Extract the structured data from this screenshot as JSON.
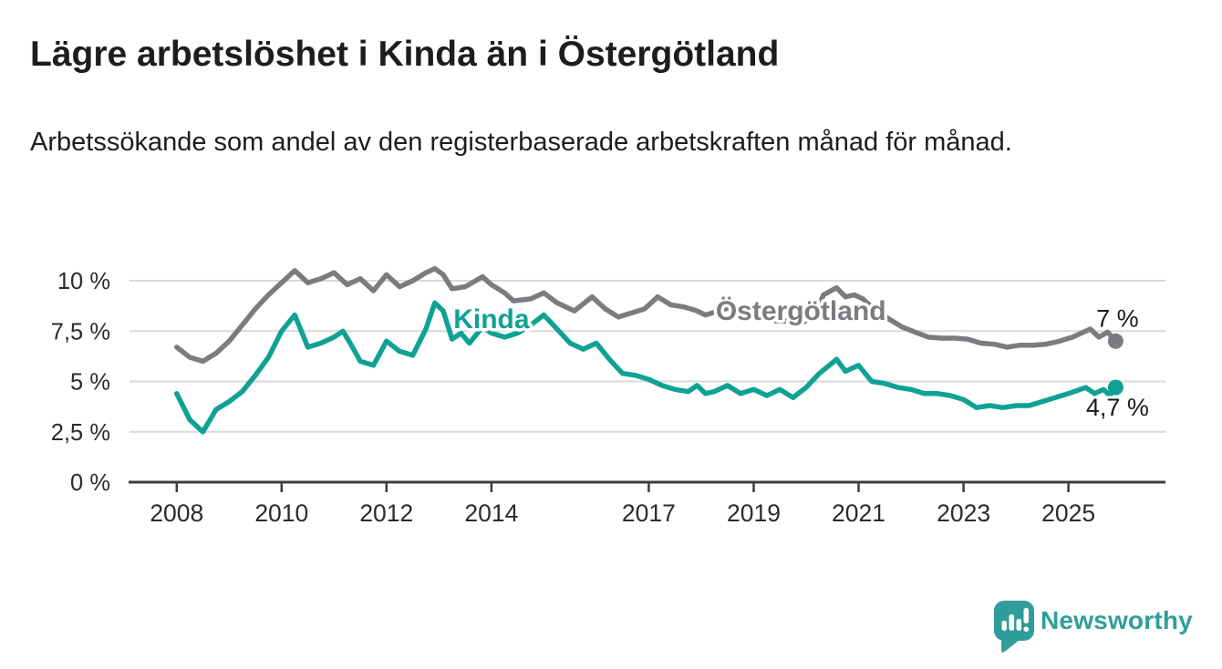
{
  "header": {
    "title": "Lägre arbetslöshet i Kinda än i Östergötland",
    "subtitle": "Arbetssökande som andel av den registerbaserade arbetskraften månad för månad."
  },
  "footer": {
    "brand": "Newsworthy",
    "brand_color": "#2f9e9b",
    "logo_icon": "speech-bubble-with-bar-chart-and-exclamation"
  },
  "chart_data": {
    "type": "line",
    "title": "Lägre arbetslöshet i Kinda än i Östergötland",
    "subtitle": "Arbetssökande som andel av den registerbaserade arbetskraften månad för månad.",
    "unit": "%",
    "grid": true,
    "x_axis": {
      "range": [
        2007.1,
        2026.85
      ],
      "ticks": [
        {
          "value": 2008,
          "label": "2008"
        },
        {
          "value": 2010,
          "label": "2010"
        },
        {
          "value": 2012,
          "label": "2012"
        },
        {
          "value": 2014,
          "label": "2014"
        },
        {
          "value": 2017,
          "label": "2017"
        },
        {
          "value": 2019,
          "label": "2019"
        },
        {
          "value": 2021,
          "label": "2021"
        },
        {
          "value": 2023,
          "label": "2023"
        },
        {
          "value": 2025,
          "label": "2025"
        }
      ]
    },
    "y_axis": {
      "range": [
        0,
        10.8
      ],
      "ticks": [
        {
          "value": 0,
          "label": "0 %"
        },
        {
          "value": 2.5,
          "label": "2,5 %"
        },
        {
          "value": 5,
          "label": "5 %"
        },
        {
          "value": 7.5,
          "label": "7,5 %"
        },
        {
          "value": 10,
          "label": "10 %"
        }
      ]
    },
    "colors": {
      "grid": "#d9d9d9",
      "axis": "#3d3d3d",
      "tick_label": "#2b2b2b",
      "end_label_text": "#1a1a1a"
    },
    "series": [
      {
        "id": "kinda",
        "name": "Kinda",
        "color": "#0fa294",
        "inline_label": {
          "x": 2014.0,
          "y": 7.65
        },
        "end_dot": {
          "x": 2025.9,
          "y": 4.7
        },
        "end_label": "4,7 %",
        "end_label_position": "below",
        "points": [
          [
            2008.0,
            4.4
          ],
          [
            2008.25,
            3.1
          ],
          [
            2008.5,
            2.5
          ],
          [
            2008.75,
            3.6
          ],
          [
            2009.0,
            4.0
          ],
          [
            2009.25,
            4.5
          ],
          [
            2009.5,
            5.3
          ],
          [
            2009.75,
            6.2
          ],
          [
            2010.0,
            7.5
          ],
          [
            2010.25,
            8.3
          ],
          [
            2010.5,
            6.7
          ],
          [
            2010.75,
            6.9
          ],
          [
            2011.0,
            7.2
          ],
          [
            2011.17,
            7.5
          ],
          [
            2011.33,
            6.8
          ],
          [
            2011.5,
            6.0
          ],
          [
            2011.75,
            5.8
          ],
          [
            2012.0,
            7.0
          ],
          [
            2012.25,
            6.5
          ],
          [
            2012.5,
            6.3
          ],
          [
            2012.75,
            7.6
          ],
          [
            2012.92,
            8.9
          ],
          [
            2013.08,
            8.5
          ],
          [
            2013.25,
            7.1
          ],
          [
            2013.42,
            7.4
          ],
          [
            2013.58,
            6.9
          ],
          [
            2013.83,
            7.7
          ],
          [
            2014.0,
            7.4
          ],
          [
            2014.25,
            7.2
          ],
          [
            2014.5,
            7.4
          ],
          [
            2014.75,
            7.8
          ],
          [
            2015.0,
            8.3
          ],
          [
            2015.25,
            7.6
          ],
          [
            2015.5,
            6.9
          ],
          [
            2015.75,
            6.6
          ],
          [
            2016.0,
            6.9
          ],
          [
            2016.25,
            6.1
          ],
          [
            2016.5,
            5.4
          ],
          [
            2016.75,
            5.3
          ],
          [
            2017.0,
            5.1
          ],
          [
            2017.25,
            4.8
          ],
          [
            2017.5,
            4.6
          ],
          [
            2017.75,
            4.5
          ],
          [
            2017.92,
            4.8
          ],
          [
            2018.08,
            4.4
          ],
          [
            2018.25,
            4.5
          ],
          [
            2018.5,
            4.8
          ],
          [
            2018.75,
            4.4
          ],
          [
            2019.0,
            4.6
          ],
          [
            2019.25,
            4.3
          ],
          [
            2019.5,
            4.6
          ],
          [
            2019.75,
            4.2
          ],
          [
            2020.0,
            4.7
          ],
          [
            2020.25,
            5.4
          ],
          [
            2020.58,
            6.1
          ],
          [
            2020.75,
            5.5
          ],
          [
            2021.0,
            5.8
          ],
          [
            2021.25,
            5.0
          ],
          [
            2021.5,
            4.9
          ],
          [
            2021.75,
            4.7
          ],
          [
            2022.0,
            4.6
          ],
          [
            2022.25,
            4.4
          ],
          [
            2022.5,
            4.4
          ],
          [
            2022.75,
            4.3
          ],
          [
            2023.0,
            4.1
          ],
          [
            2023.25,
            3.7
          ],
          [
            2023.5,
            3.8
          ],
          [
            2023.75,
            3.7
          ],
          [
            2024.0,
            3.8
          ],
          [
            2024.25,
            3.8
          ],
          [
            2024.5,
            4.0
          ],
          [
            2024.75,
            4.2
          ],
          [
            2025.0,
            4.4
          ],
          [
            2025.33,
            4.7
          ],
          [
            2025.5,
            4.4
          ],
          [
            2025.67,
            4.6
          ],
          [
            2025.79,
            4.3
          ],
          [
            2025.9,
            4.7
          ]
        ]
      },
      {
        "id": "ostergotland",
        "name": "Östergötland",
        "color": "#7b7b80",
        "inline_label": {
          "x": 2019.9,
          "y": 8.05
        },
        "end_dot": {
          "x": 2025.9,
          "y": 7.0
        },
        "end_label": "7 %",
        "end_label_position": "above",
        "points": [
          [
            2008.0,
            6.7
          ],
          [
            2008.25,
            6.2
          ],
          [
            2008.5,
            6.0
          ],
          [
            2008.75,
            6.4
          ],
          [
            2009.0,
            7.0
          ],
          [
            2009.25,
            7.8
          ],
          [
            2009.5,
            8.6
          ],
          [
            2009.75,
            9.3
          ],
          [
            2010.0,
            9.9
          ],
          [
            2010.25,
            10.5
          ],
          [
            2010.5,
            9.9
          ],
          [
            2010.75,
            10.1
          ],
          [
            2011.0,
            10.4
          ],
          [
            2011.25,
            9.8
          ],
          [
            2011.5,
            10.1
          ],
          [
            2011.75,
            9.5
          ],
          [
            2012.0,
            10.3
          ],
          [
            2012.25,
            9.7
          ],
          [
            2012.5,
            10.0
          ],
          [
            2012.75,
            10.4
          ],
          [
            2012.92,
            10.6
          ],
          [
            2013.08,
            10.3
          ],
          [
            2013.25,
            9.6
          ],
          [
            2013.5,
            9.7
          ],
          [
            2013.83,
            10.2
          ],
          [
            2014.0,
            9.8
          ],
          [
            2014.25,
            9.4
          ],
          [
            2014.42,
            9.0
          ],
          [
            2014.75,
            9.1
          ],
          [
            2015.0,
            9.4
          ],
          [
            2015.25,
            8.9
          ],
          [
            2015.58,
            8.5
          ],
          [
            2015.92,
            9.2
          ],
          [
            2016.17,
            8.6
          ],
          [
            2016.42,
            8.2
          ],
          [
            2016.67,
            8.4
          ],
          [
            2016.92,
            8.6
          ],
          [
            2017.17,
            9.2
          ],
          [
            2017.42,
            8.8
          ],
          [
            2017.67,
            8.7
          ],
          [
            2017.92,
            8.5
          ],
          [
            2018.08,
            8.3
          ],
          [
            2018.33,
            8.5
          ],
          [
            2018.58,
            8.7
          ],
          [
            2018.92,
            8.1
          ],
          [
            2019.17,
            8.4
          ],
          [
            2019.42,
            8.0
          ],
          [
            2019.67,
            8.0
          ],
          [
            2019.92,
            7.9
          ],
          [
            2020.17,
            8.3
          ],
          [
            2020.33,
            9.3
          ],
          [
            2020.58,
            9.65
          ],
          [
            2020.75,
            9.2
          ],
          [
            2020.92,
            9.3
          ],
          [
            2021.08,
            9.1
          ],
          [
            2021.33,
            8.5
          ],
          [
            2021.58,
            8.1
          ],
          [
            2021.83,
            7.7
          ],
          [
            2022.08,
            7.45
          ],
          [
            2022.33,
            7.2
          ],
          [
            2022.58,
            7.15
          ],
          [
            2022.83,
            7.15
          ],
          [
            2023.08,
            7.1
          ],
          [
            2023.33,
            6.9
          ],
          [
            2023.58,
            6.85
          ],
          [
            2023.83,
            6.7
          ],
          [
            2024.08,
            6.8
          ],
          [
            2024.33,
            6.8
          ],
          [
            2024.58,
            6.85
          ],
          [
            2024.83,
            7.0
          ],
          [
            2025.08,
            7.2
          ],
          [
            2025.33,
            7.5
          ],
          [
            2025.42,
            7.6
          ],
          [
            2025.58,
            7.2
          ],
          [
            2025.75,
            7.45
          ],
          [
            2025.9,
            7.0
          ]
        ]
      }
    ]
  }
}
